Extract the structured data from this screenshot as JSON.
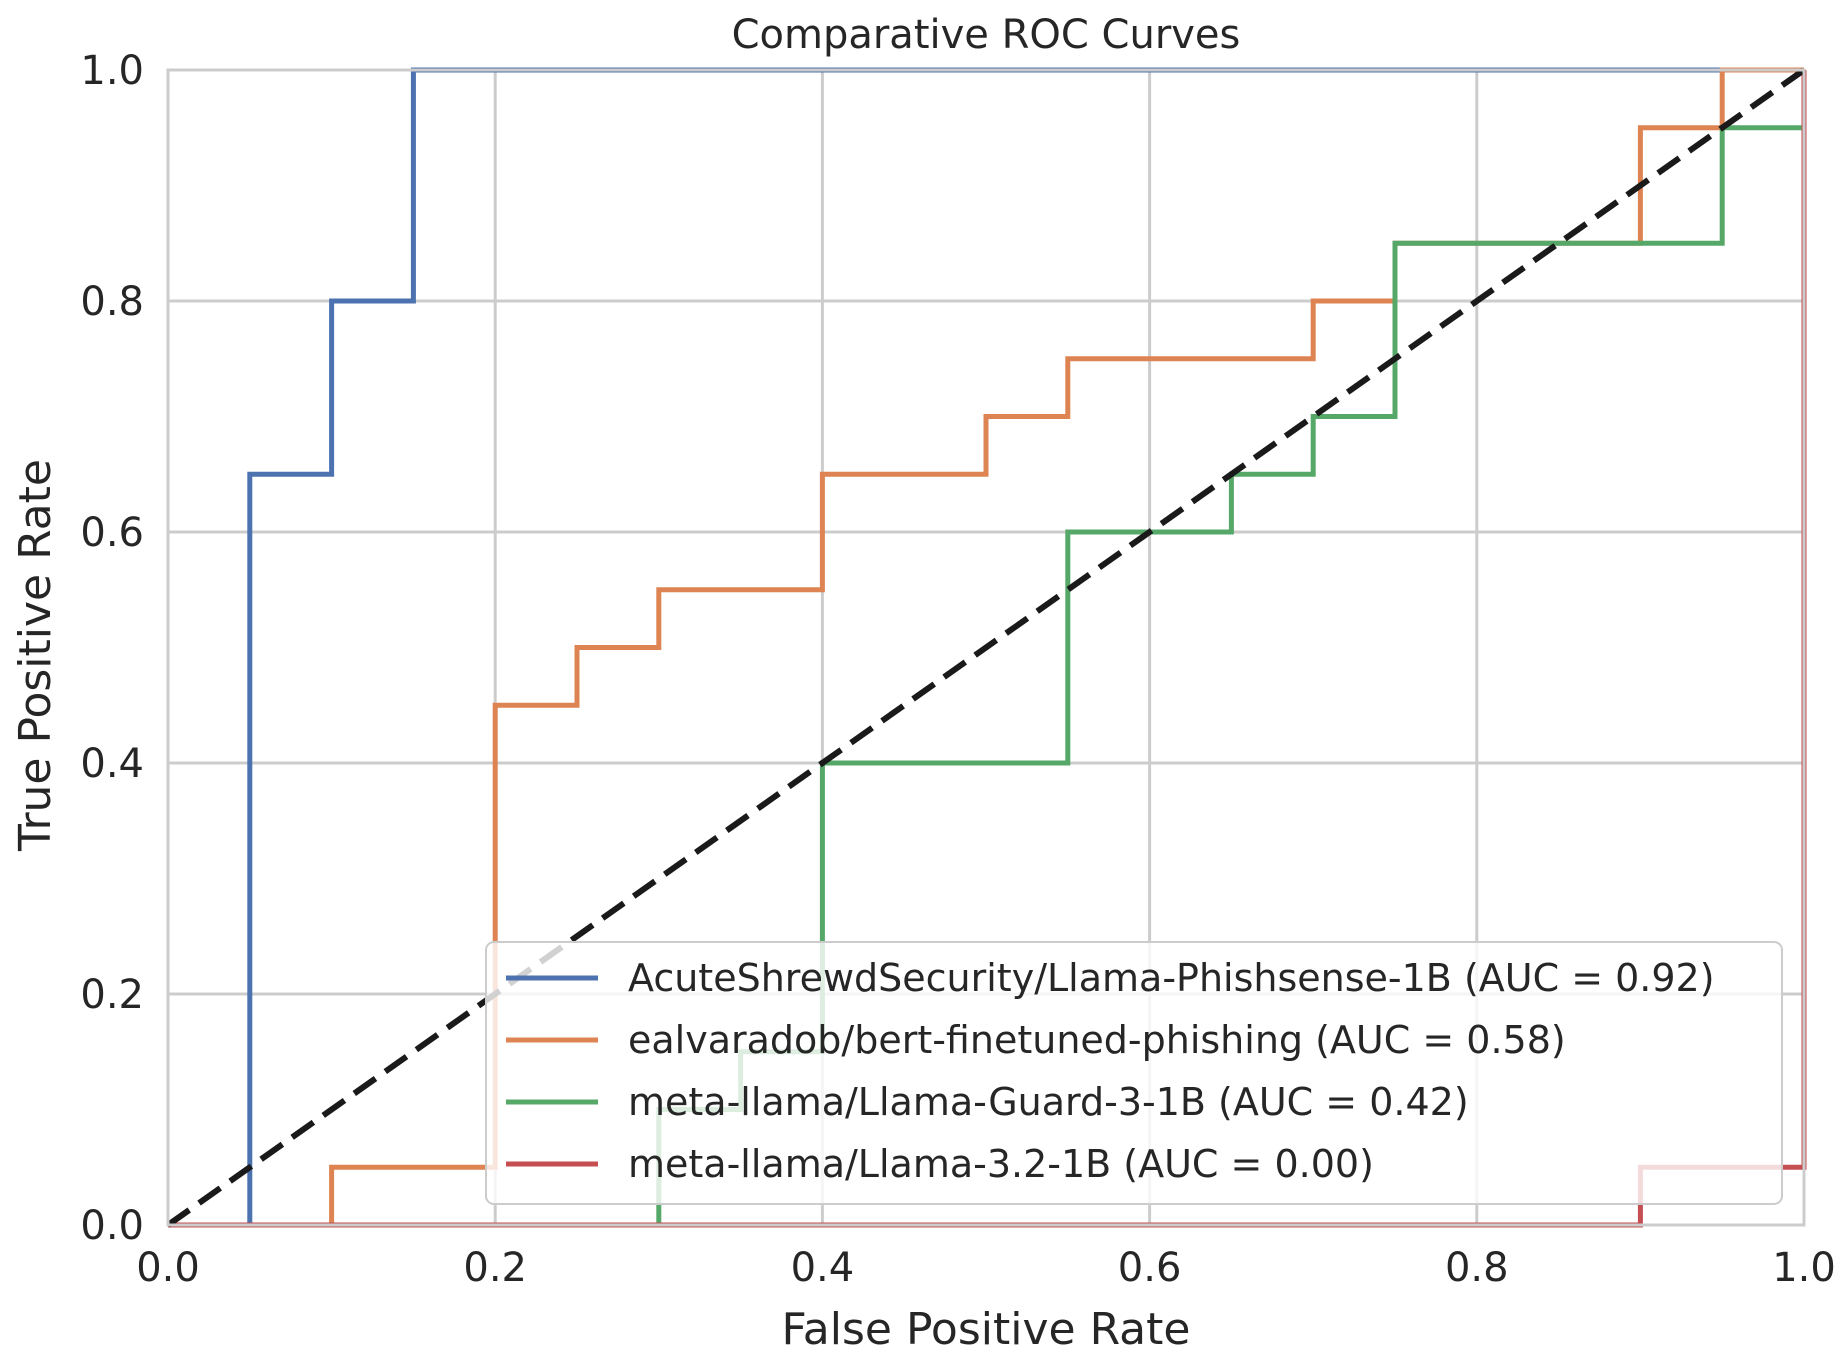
{
  "chart_data": {
    "type": "line",
    "title": "Comparative ROC Curves",
    "xlabel": "False Positive Rate",
    "ylabel": "True Positive Rate",
    "xlim": [
      0,
      1
    ],
    "ylim": [
      0,
      1
    ],
    "xticks": [
      "0.0",
      "0.2",
      "0.4",
      "0.6",
      "0.8",
      "1.0"
    ],
    "yticks": [
      "0.0",
      "0.2",
      "0.4",
      "0.6",
      "0.8",
      "1.0"
    ],
    "grid": true,
    "legend_position": "bottom-right",
    "diagonal": {
      "x": [
        0,
        1
      ],
      "y": [
        0,
        1
      ],
      "color": "#1a1a1a",
      "style": "dashed"
    },
    "series": [
      {
        "name": "AcuteShrewdSecurity/Llama-Phishsense-1B (AUC = 0.92)",
        "color": "#4c72b0",
        "x": [
          0,
          0.05,
          0.05,
          0.1,
          0.1,
          0.15,
          0.15,
          1.0
        ],
        "y": [
          0,
          0,
          0.65,
          0.65,
          0.8,
          0.8,
          1.0,
          1.0
        ]
      },
      {
        "name": "ealvaradob/bert-finetuned-phishing (AUC = 0.58)",
        "color": "#dd8452",
        "x": [
          0,
          0.1,
          0.1,
          0.2,
          0.2,
          0.25,
          0.25,
          0.3,
          0.3,
          0.4,
          0.4,
          0.5,
          0.5,
          0.55,
          0.55,
          0.7,
          0.7,
          0.75,
          0.75,
          0.9,
          0.9,
          0.95,
          0.95,
          1.0
        ],
        "y": [
          0,
          0,
          0.05,
          0.05,
          0.45,
          0.45,
          0.5,
          0.5,
          0.55,
          0.55,
          0.65,
          0.65,
          0.7,
          0.7,
          0.75,
          0.75,
          0.8,
          0.8,
          0.85,
          0.85,
          0.95,
          0.95,
          1.0,
          1.0
        ]
      },
      {
        "name": "meta-llama/Llama-Guard-3-1B (AUC = 0.42)",
        "color": "#55a868",
        "x": [
          0,
          0.3,
          0.3,
          0.35,
          0.35,
          0.4,
          0.4,
          0.55,
          0.55,
          0.65,
          0.65,
          0.7,
          0.7,
          0.75,
          0.75,
          0.95,
          0.95,
          1.0,
          1.0
        ],
        "y": [
          0,
          0,
          0.1,
          0.1,
          0.15,
          0.15,
          0.4,
          0.4,
          0.6,
          0.6,
          0.65,
          0.65,
          0.7,
          0.7,
          0.85,
          0.85,
          0.95,
          0.95,
          1.0
        ]
      },
      {
        "name": "meta-llama/Llama-3.2-1B (AUC = 0.00)",
        "color": "#c44e52",
        "x": [
          0,
          0.9,
          0.9,
          1.0,
          1.0
        ],
        "y": [
          0,
          0,
          0.05,
          0.05,
          1.0
        ]
      }
    ]
  }
}
